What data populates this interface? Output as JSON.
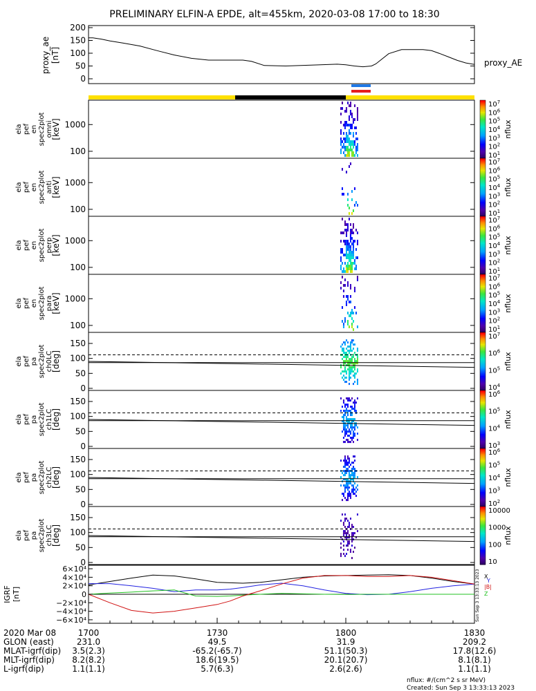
{
  "title": "PRELIMINARY ELFIN-A EPDE, alt=455km, 2020-03-08 17:00 to 18:30",
  "colors": {
    "sunlight_bar": "#ffe000",
    "shadow_bar": "#000000",
    "science_zone_blue": "#1e78e6",
    "science_zone_red": "#e61e1e",
    "igrf_x": "#000000",
    "igrf_y": "#2020e0",
    "igrf_z": "#20c020",
    "igrf_mag": "#d01010"
  },
  "colorbar_labels": {
    "spectra": [
      "10^7",
      "10^6",
      "10^5",
      "10^4",
      "10^3",
      "10^2",
      "10^1"
    ],
    "pa_ch0": [
      "10^7",
      "10^6",
      "10^5",
      "10^4"
    ],
    "pa_ch1": [
      "10^6",
      "10^5",
      "10^4",
      "10^3"
    ],
    "pa_ch2": [
      "10^6",
      "10^5",
      "10^4",
      "10^3",
      "10^2"
    ],
    "pa_ch3": [
      "10000",
      "1000",
      "100",
      "10"
    ],
    "unit": "nflux"
  },
  "chart_data": [
    {
      "id": "proxy_ae",
      "type": "line",
      "ylabel_lines": [
        "proxy_ae",
        "[nT]"
      ],
      "legend_label": "proxy_AE",
      "ylim": [
        0,
        210
      ],
      "yticks": [
        "200",
        "150",
        "100",
        "50",
        "0"
      ],
      "x": [
        0,
        1,
        3,
        5,
        8,
        12,
        16,
        20,
        24,
        28,
        32,
        36,
        38,
        41,
        46,
        53,
        58,
        60,
        62,
        64,
        66,
        67,
        70,
        73,
        76,
        78,
        80,
        82,
        84,
        86,
        88,
        90
      ],
      "values": [
        160,
        160,
        155,
        148,
        140,
        128,
        110,
        93,
        80,
        73,
        73,
        73,
        68,
        52,
        50,
        54,
        57,
        55,
        50,
        47,
        50,
        58,
        98,
        114,
        114,
        114,
        110,
        98,
        85,
        72,
        62,
        56
      ]
    },
    {
      "id": "omni",
      "type": "heatmap",
      "ylabel_lines": [
        "ela",
        "pef",
        "en",
        "spec2plot",
        "omni",
        "[keV]"
      ],
      "ytick_labels": [
        "1000",
        "100"
      ]
    },
    {
      "id": "anti",
      "type": "heatmap",
      "ylabel_lines": [
        "ela",
        "pef",
        "en",
        "spec2plot",
        "anti",
        "[keV]"
      ],
      "ytick_labels": [
        "1000",
        "100"
      ]
    },
    {
      "id": "perp",
      "type": "heatmap",
      "ylabel_lines": [
        "ela",
        "pef",
        "en",
        "spec2plot",
        "perp",
        "[keV]"
      ],
      "ytick_labels": [
        "1000",
        "100"
      ]
    },
    {
      "id": "para",
      "type": "heatmap",
      "ylabel_lines": [
        "ela",
        "pef",
        "en",
        "spec2plot",
        "para",
        "[keV]"
      ],
      "ytick_labels": [
        "1000",
        "100"
      ]
    },
    {
      "id": "ch0",
      "type": "heatmap",
      "ylabel_lines": [
        "ela",
        "pef",
        "pa",
        "spec2plot",
        "ch0LC",
        "[deg]"
      ],
      "ytick_labels": [
        "150",
        "100",
        "50",
        "0"
      ],
      "ylim": [
        0,
        180
      ],
      "loss_cone_solid": [
        [
          0,
          90
        ],
        [
          90,
          70
        ]
      ],
      "loss_cone_dashed": [
        [
          0,
          112
        ],
        [
          90,
          112
        ]
      ]
    },
    {
      "id": "ch1",
      "type": "heatmap",
      "ylabel_lines": [
        "ela",
        "pef",
        "pa",
        "spec2plot",
        "ch1LC",
        "[deg]"
      ],
      "ytick_labels": [
        "150",
        "100",
        "50",
        "0"
      ],
      "ylim": [
        0,
        180
      ]
    },
    {
      "id": "ch2",
      "type": "heatmap",
      "ylabel_lines": [
        "ela",
        "pef",
        "pa",
        "spec2plot",
        "ch2LC",
        "[deg]"
      ],
      "ytick_labels": [
        "150",
        "100",
        "50",
        "0"
      ],
      "ylim": [
        0,
        180
      ]
    },
    {
      "id": "ch3",
      "type": "heatmap",
      "ylabel_lines": [
        "ela",
        "pef",
        "pa",
        "spec2plot",
        "ch3LC",
        "[deg]"
      ],
      "ytick_labels": [
        "150",
        "100",
        "50",
        "0"
      ],
      "ylim": [
        0,
        180
      ]
    },
    {
      "id": "igrf",
      "type": "line",
      "ylabel_lines": [
        "IGRF",
        "[nT]"
      ],
      "ylim": [
        -65000,
        65000
      ],
      "ytick_labels": [
        "6×10⁴",
        "4×10⁴",
        "2×10⁴",
        "0",
        "−2×10⁴",
        "−4×10⁴",
        "−6×10⁴"
      ],
      "legend": [
        "X",
        "Y",
        "Z",
        "|B|"
      ],
      "x": [
        0,
        5,
        10,
        15,
        20,
        25,
        30,
        33,
        36,
        40,
        45,
        50,
        55,
        60,
        65,
        70,
        75,
        80,
        85,
        90
      ],
      "series": [
        {
          "name": "X",
          "values": [
            22000,
            30000,
            38000,
            45000,
            43000,
            36000,
            28000,
            27000,
            26000,
            28000,
            34000,
            40000,
            43000,
            44000,
            45000,
            46000,
            44000,
            38000,
            30000,
            24000
          ]
        },
        {
          "name": "Y",
          "values": [
            25000,
            25000,
            20000,
            14000,
            6000,
            10000,
            10000,
            12000,
            16000,
            22000,
            26000,
            20000,
            10000,
            2000,
            -1000,
            0,
            6000,
            14000,
            20000,
            24000
          ]
        },
        {
          "name": "Z",
          "values": [
            0,
            3000,
            5000,
            8000,
            10000,
            -4000,
            -5000,
            -4000,
            -2000,
            0,
            2000,
            1000,
            0,
            -500,
            0,
            0,
            0,
            0,
            0,
            0
          ]
        },
        {
          "name": "|B|",
          "values": [
            0,
            -20000,
            -38000,
            -44000,
            -40000,
            -32000,
            -24000,
            -16000,
            -4000,
            8000,
            24000,
            38000,
            44000,
            44000,
            42000,
            42000,
            44000,
            40000,
            32000,
            24000
          ]
        }
      ]
    }
  ],
  "x_axis": {
    "ticks": [
      {
        "minute": 0,
        "time": "1700",
        "glon": "231.0",
        "mlat": "3.5(2.3)",
        "mlt": "8.2(8.2)",
        "l": "1.1(1.1)"
      },
      {
        "minute": 30,
        "time": "1730",
        "glon": "49.5",
        "mlat": "-65.2(-65.7)",
        "mlt": "18.6(19.5)",
        "l": "5.7(6.3)"
      },
      {
        "minute": 60,
        "time": "1800",
        "glon": "31.9",
        "mlat": "51.1(50.3)",
        "mlt": "20.1(20.7)",
        "l": "2.6(2.6)"
      },
      {
        "minute": 90,
        "time": "1830",
        "glon": "209.2",
        "mlat": "17.8(12.6)",
        "mlt": "8.1(8.1)",
        "l": "1.1(1.1)"
      }
    ],
    "row_labels": [
      "2020 Mar 08",
      "GLON (east)",
      "MLAT-igrf(dip)",
      "MLT-igrf(dip)",
      "L-igrf(dip)"
    ]
  },
  "footer": {
    "unit_note": "nflux: #/(cm^2 s sr MeV)",
    "created": "Created: Sun Sep  3 13:33:13 2023",
    "side_stamp": "Sun Sep  3 13:33:13 2023"
  }
}
